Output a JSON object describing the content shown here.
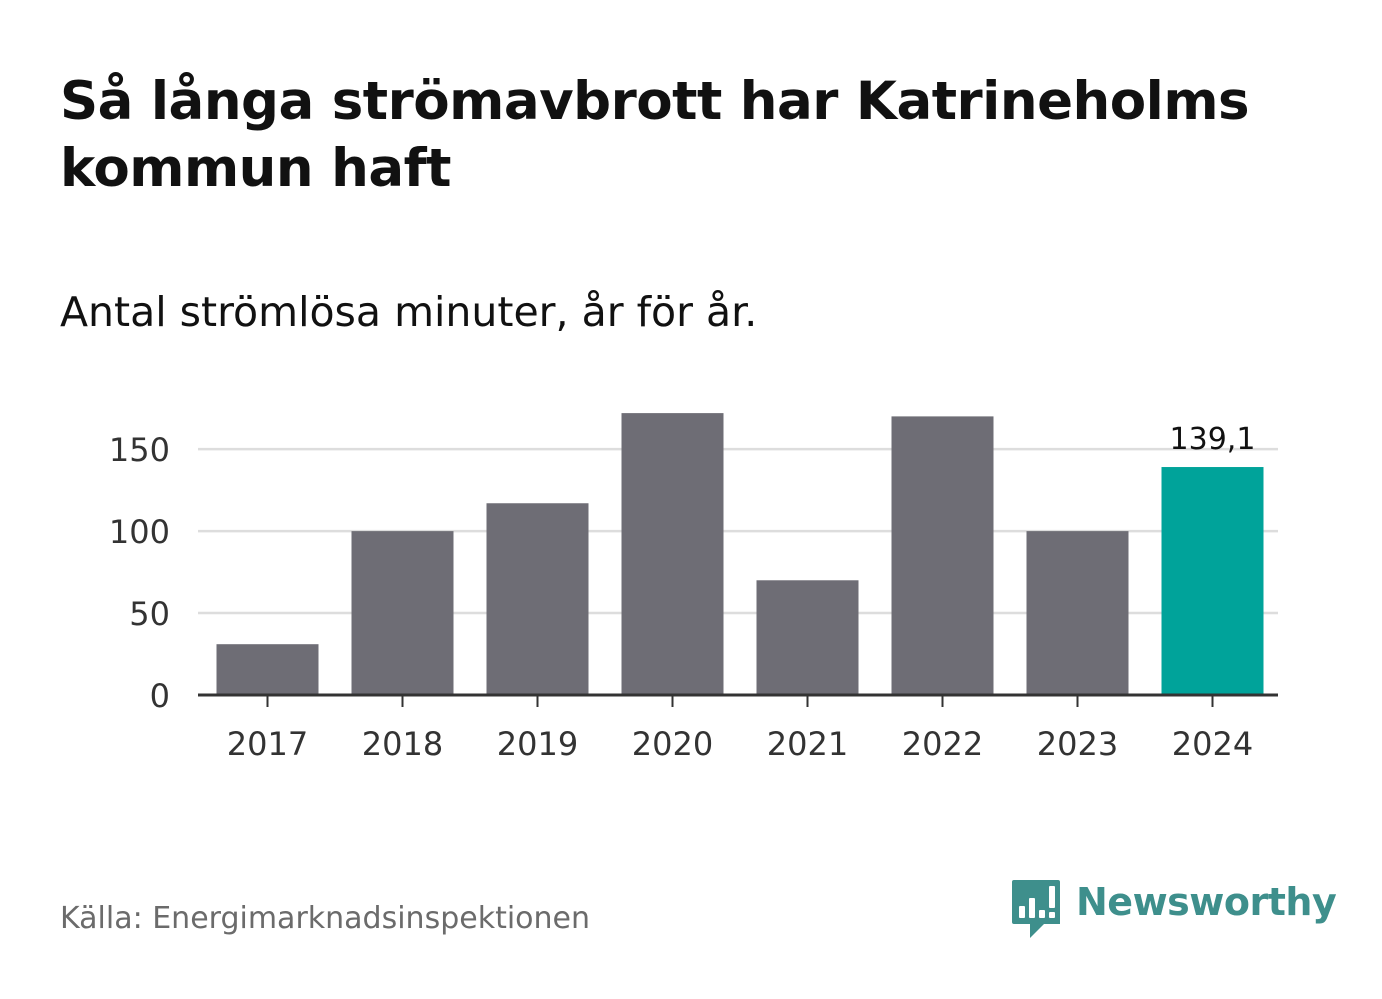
{
  "title": "Så långa strömavbrott har Katrineholms kommun haft",
  "subtitle": "Antal strömlösa minuter, år för år.",
  "source": "Källa: Energimarknadsinspektionen",
  "brand": {
    "name": "Newsworthy",
    "logo_icon": "newsworthy-logo-icon"
  },
  "colors": {
    "bar": "#6e6d75",
    "highlight": "#00a39a",
    "grid": "#dddddd",
    "axis": "#333333",
    "brand": "#3e8f8c"
  },
  "chart_data": {
    "type": "bar",
    "title": "Så långa strömavbrott har Katrineholms kommun haft",
    "subtitle": "Antal strömlösa minuter, år för år.",
    "xlabel": "",
    "ylabel": "",
    "categories": [
      "2017",
      "2018",
      "2019",
      "2020",
      "2021",
      "2022",
      "2023",
      "2024"
    ],
    "values": [
      31,
      100,
      117,
      172,
      70,
      170,
      100,
      139.1
    ],
    "highlight_index": 7,
    "data_labels": [
      {
        "index": 7,
        "text": "139,1"
      }
    ],
    "ylim": [
      0,
      180
    ],
    "yticks": [
      0,
      50,
      100,
      150
    ],
    "ytick_labels": [
      "0",
      "50",
      "100",
      "150"
    ],
    "grid": true,
    "legend": "none"
  }
}
